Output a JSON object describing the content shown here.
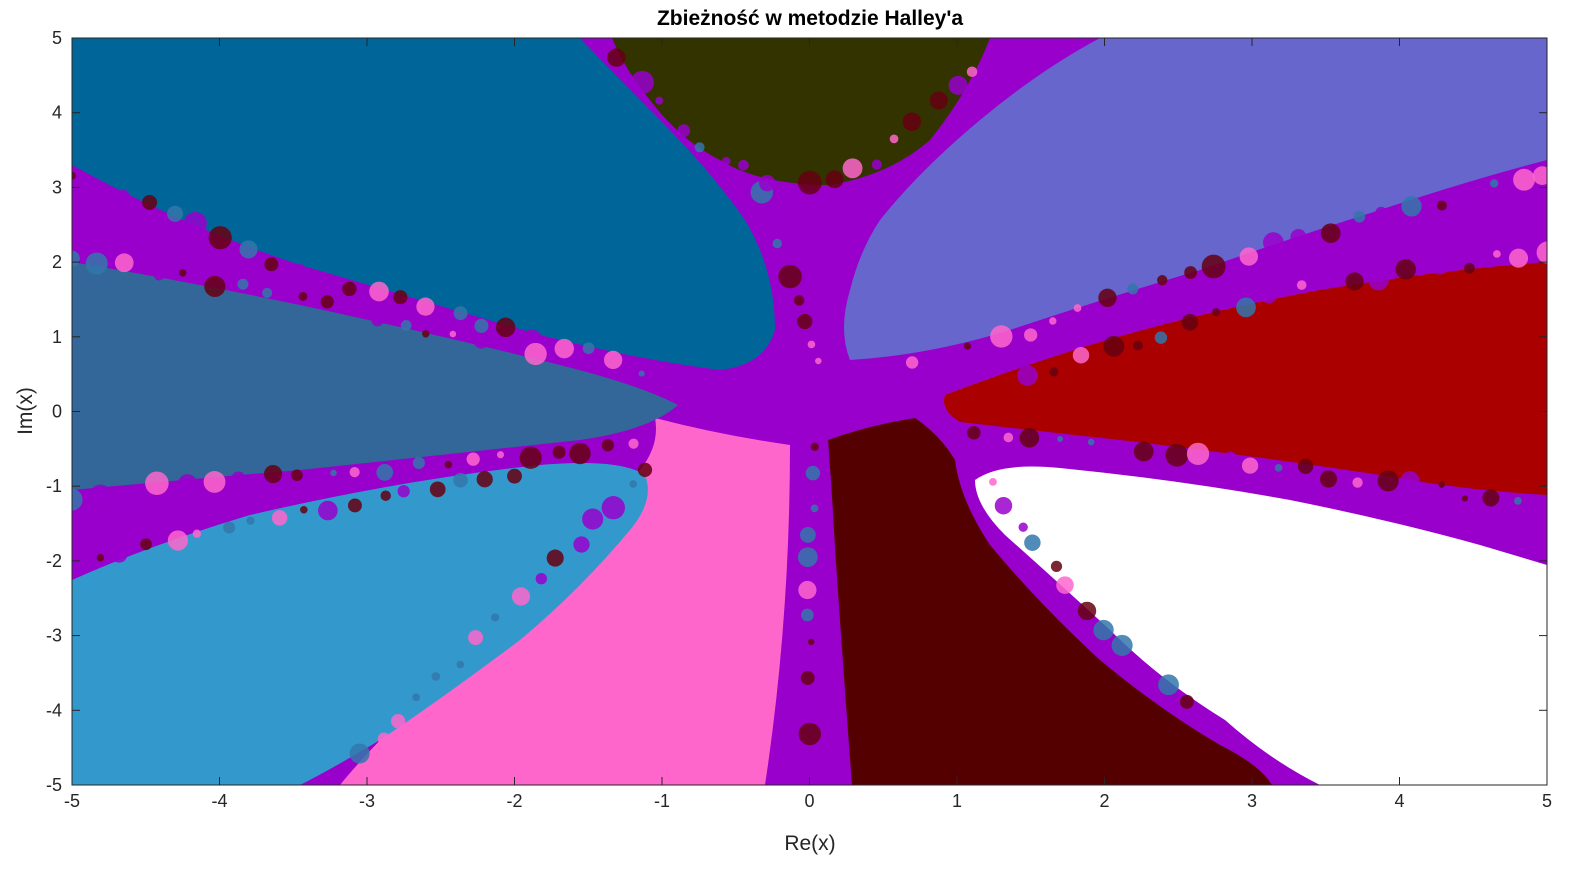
{
  "chart_data": {
    "type": "heatmap",
    "title": "Zbieżność w metodzie Halley'a",
    "xlabel": "Re(x)",
    "ylabel": "Im(x)",
    "xlim": [
      -5,
      5
    ],
    "ylim": [
      -5,
      5
    ],
    "xticks": [
      "-5",
      "-4",
      "-3",
      "-2",
      "-1",
      "0",
      "1",
      "2",
      "3",
      "4",
      "5"
    ],
    "yticks": [
      "5",
      "4",
      "3",
      "2",
      "1",
      "0",
      "-1",
      "-2",
      "-3",
      "-4",
      "-5"
    ],
    "grid": false,
    "legend": "none",
    "colors": {
      "boundary": "#9900cc",
      "region_top": "#333300",
      "region_upper_right": "#6666cc",
      "region_right": "#aa0000",
      "region_lower_right": "#ffffff",
      "region_bottom_right": "#550000",
      "region_bottom": "#ff66cc",
      "region_lower_left": "#3399cc",
      "region_left": "#336699",
      "region_upper_left": "#006699",
      "bulb_dark": "#660011",
      "bulb_blue": "#3377aa"
    },
    "regions": [
      {
        "name": "region-top",
        "color_key": "region_top"
      },
      {
        "name": "region-upper-right",
        "color_key": "region_upper_right"
      },
      {
        "name": "region-right",
        "color_key": "region_right"
      },
      {
        "name": "region-lower-right",
        "color_key": "region_lower_right"
      },
      {
        "name": "region-bottom-right",
        "color_key": "region_bottom_right"
      },
      {
        "name": "region-bottom",
        "color_key": "region_bottom"
      },
      {
        "name": "region-lower-left",
        "color_key": "region_lower_left"
      },
      {
        "name": "region-left",
        "color_key": "region_left"
      },
      {
        "name": "region-upper-left",
        "color_key": "region_upper_left"
      }
    ]
  }
}
